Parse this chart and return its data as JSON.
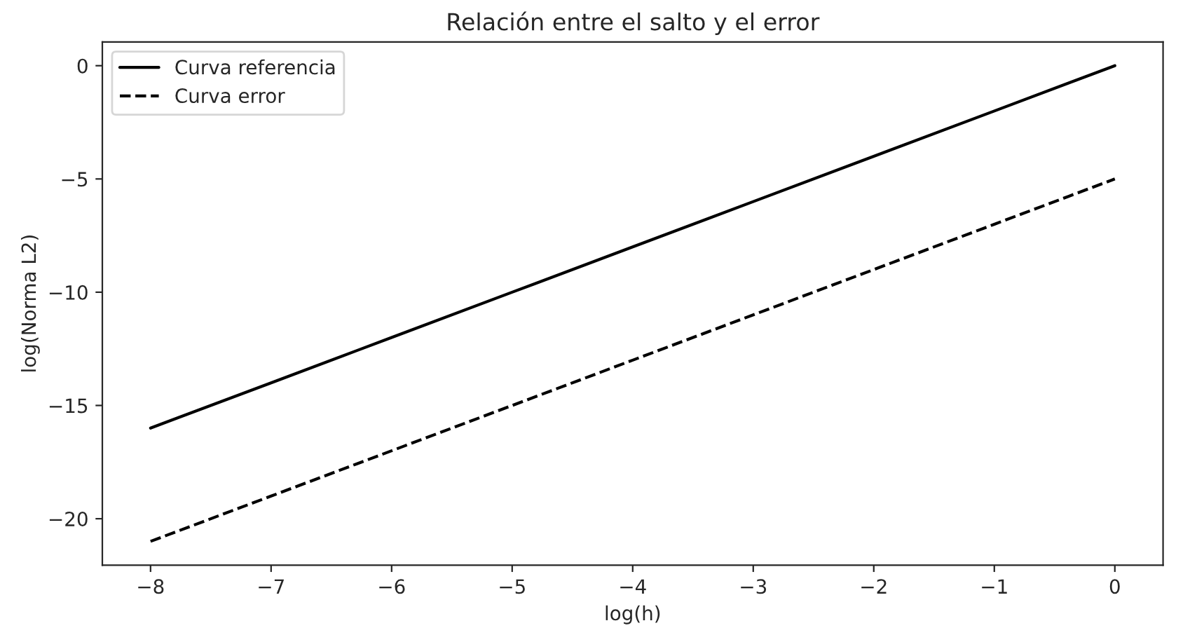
{
  "chart_data": {
    "type": "line",
    "title": "Relación entre el salto y el error",
    "xlabel": "log(h)",
    "ylabel": "log(Norma L2)",
    "x": [
      -8,
      -7,
      -6,
      -5,
      -4,
      -3,
      -2,
      -1,
      0
    ],
    "series": [
      {
        "name": "Curva referencia",
        "color": "#000000",
        "line_style": "solid",
        "values": [
          -16,
          -14,
          -12,
          -10,
          -8,
          -6,
          -4,
          -2,
          0
        ]
      },
      {
        "name": "Curva error",
        "color": "#000000",
        "line_style": "dashed",
        "values": [
          -21,
          -19,
          -17,
          -15,
          -13,
          -11,
          -9,
          -7,
          -5
        ]
      }
    ],
    "xlim": [
      -8.4,
      0.4
    ],
    "ylim": [
      -22.05,
      1.05
    ],
    "xticks": [
      {
        "value": -8,
        "label": "−8"
      },
      {
        "value": -7,
        "label": "−7"
      },
      {
        "value": -6,
        "label": "−6"
      },
      {
        "value": -5,
        "label": "−5"
      },
      {
        "value": -4,
        "label": "−4"
      },
      {
        "value": -3,
        "label": "−3"
      },
      {
        "value": -2,
        "label": "−2"
      },
      {
        "value": -1,
        "label": "−1"
      },
      0
    ],
    "yticks": [
      {
        "value": -20,
        "label": "−20"
      },
      {
        "value": -15,
        "label": "−15"
      },
      {
        "value": -10,
        "label": "−10"
      },
      {
        "value": -5,
        "label": "−5"
      },
      0
    ],
    "grid": false,
    "legend": "top left",
    "marker": "none"
  }
}
